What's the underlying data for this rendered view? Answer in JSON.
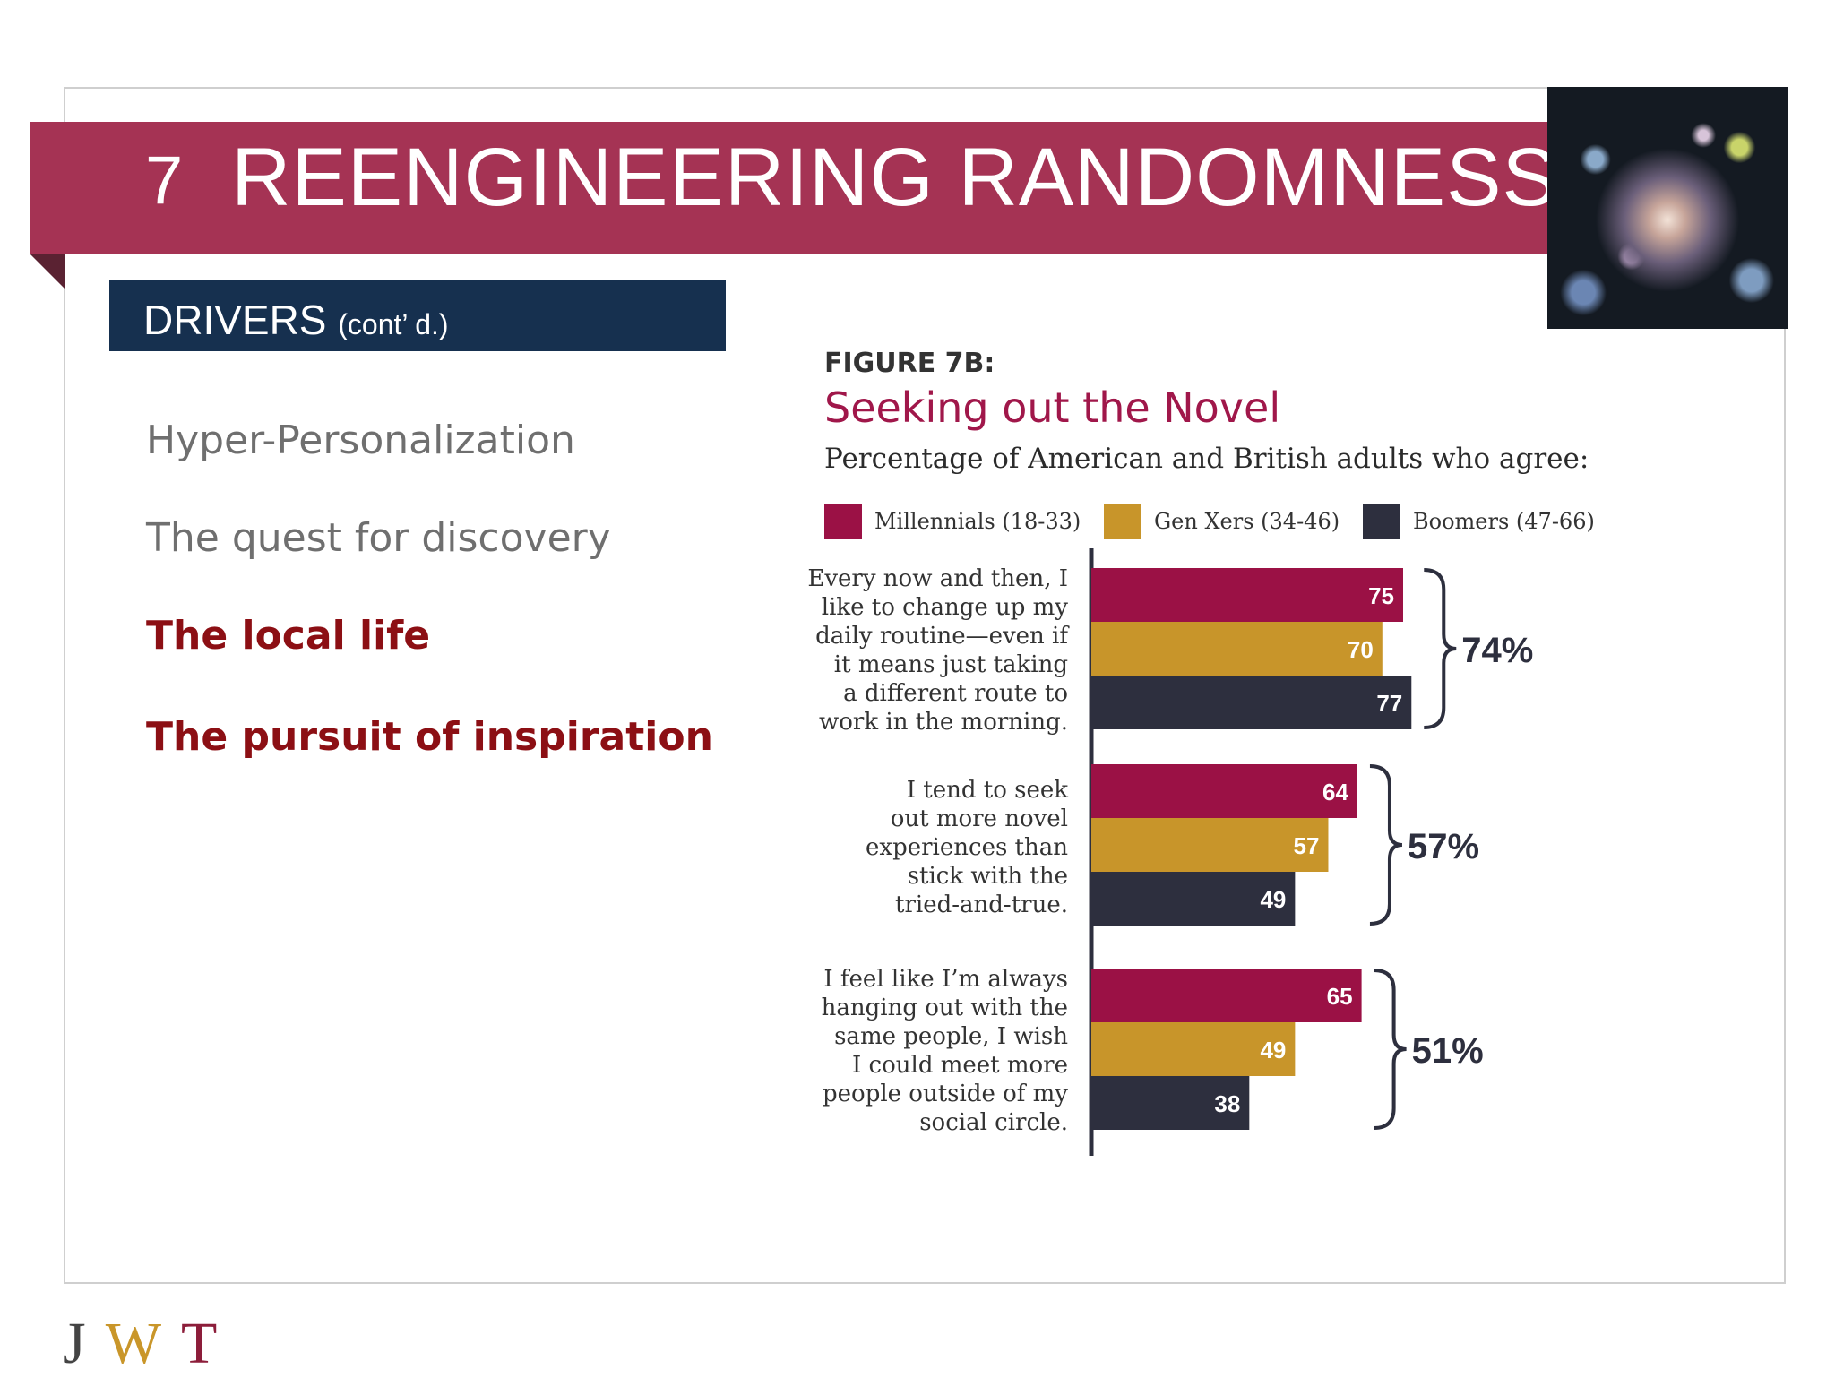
{
  "header": {
    "number": "7",
    "title": "REENGINEERING RANDOMNESS"
  },
  "section": {
    "label": "DRIVERS",
    "sublabel": "(cont’ d.)"
  },
  "drivers": [
    {
      "label": "Hyper-Personalization",
      "active": false
    },
    {
      "label": "The quest for discovery",
      "active": false
    },
    {
      "label": "The local life",
      "active": true
    },
    {
      "label": "The pursuit of inspiration",
      "active": true
    }
  ],
  "brand": {
    "logo_letters": [
      "J",
      "W",
      "T"
    ],
    "logo_colors": [
      "#444444",
      "#c9962a",
      "#8c1d3a"
    ]
  },
  "chart_data": {
    "type": "bar",
    "figure_label": "FIGURE 7B:",
    "title": "Seeking out the Novel",
    "subtitle": "Percentage of American and British adults who agree:",
    "orientation": "horizontal",
    "xlim": [
      0,
      100
    ],
    "grid": false,
    "legend": "top",
    "categories": [
      "Every now and then, I\nlike to change up my\ndaily routine—even if\nit means just taking\na different route to\nwork in the morning.",
      "I tend to seek\nout more novel\nexperiences than\nstick with the\ntried-and-true.",
      "I feel like I’m always\nhanging out with the\nsame people, I wish\nI could meet more\npeople outside of my\nsocial circle."
    ],
    "series": [
      {
        "name": "Millennials (18-33)",
        "color": "#9b1145",
        "values": [
          75,
          64,
          65
        ]
      },
      {
        "name": "Gen Xers (34-46)",
        "color": "#c8952a",
        "values": [
          70,
          57,
          49
        ]
      },
      {
        "name": "Boomers (47-66)",
        "color": "#2d2f3e",
        "values": [
          77,
          49,
          38
        ]
      }
    ],
    "totals": [
      "74%",
      "57%",
      "51%"
    ]
  }
}
